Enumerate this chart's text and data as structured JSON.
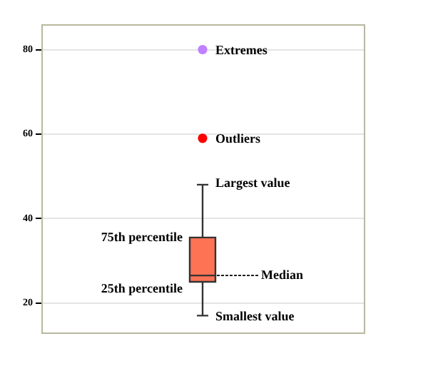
{
  "chart_data": {
    "type": "box",
    "categories": [
      null
    ],
    "series": [
      {
        "color": "#ff7355",
        "boxes": [
          {
            "low": 17,
            "q1": 25,
            "median": 26.5,
            "q3": 35.5,
            "high": 48
          }
        ]
      },
      {
        "type": "scatter",
        "color": "#c080ff",
        "values": [
          80
        ]
      },
      {
        "type": "scatter",
        "color": "#ff0000",
        "values": [
          59
        ]
      }
    ],
    "ylim": [
      13,
      86
    ],
    "yticks": [
      20,
      40,
      60,
      80
    ],
    "grid": "y",
    "tick_labels": "y",
    "legend": false,
    "annotations": [
      "Extremes",
      "Outliers",
      "Largest value",
      "75th percentile",
      "Median",
      "25th percentile",
      "Smallest value"
    ]
  }
}
